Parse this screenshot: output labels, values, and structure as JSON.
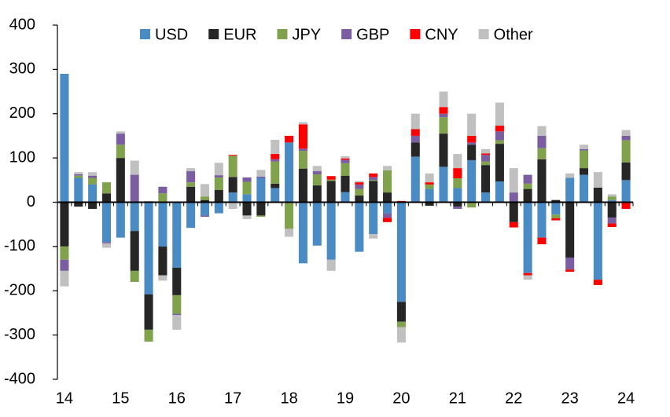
{
  "chart_data": {
    "type": "stacked_bar",
    "categories": [
      "14",
      null,
      null,
      null,
      "15",
      null,
      null,
      null,
      "16",
      null,
      null,
      null,
      "17",
      null,
      null,
      null,
      "18",
      null,
      null,
      null,
      "19",
      null,
      null,
      null,
      "20",
      null,
      null,
      null,
      "21",
      null,
      null,
      null,
      "22",
      null,
      null,
      null,
      "23",
      null,
      null,
      null,
      "24"
    ],
    "series": [
      {
        "name": "USD",
        "color": "#4a8bc4",
        "values": [
          290,
          55,
          40,
          -90,
          -80,
          -65,
          -208,
          -100,
          -148,
          -58,
          -30,
          -25,
          22,
          18,
          55,
          32,
          135,
          -138,
          -98,
          -130,
          23,
          -112,
          -72,
          -25,
          -225,
          103,
          30,
          80,
          32,
          95,
          22,
          47,
          0,
          -160,
          -80,
          -28,
          55,
          62,
          -175,
          5,
          50
        ]
      },
      {
        "name": "EUR",
        "color": "#262626",
        "values": [
          -100,
          -10,
          -15,
          20,
          100,
          -90,
          -80,
          -65,
          -62,
          35,
          5,
          28,
          35,
          -30,
          -30,
          10,
          0,
          76,
          38,
          48,
          37,
          15,
          48,
          22,
          -45,
          32,
          -8,
          75,
          -10,
          35,
          62,
          85,
          -45,
          30,
          97,
          5,
          -125,
          15,
          33,
          -35,
          40
        ]
      },
      {
        "name": "JPY",
        "color": "#80a24d",
        "values": [
          -30,
          5,
          15,
          25,
          30,
          -25,
          -27,
          20,
          -42,
          10,
          8,
          28,
          48,
          28,
          -3,
          50,
          -60,
          40,
          25,
          3,
          28,
          15,
          2,
          50,
          -12,
          0,
          10,
          37,
          22,
          -12,
          8,
          8,
          0,
          12,
          25,
          -8,
          0,
          40,
          0,
          8,
          50
        ]
      },
      {
        "name": "GBP",
        "color": "#7a5ea1",
        "values": [
          -25,
          3,
          5,
          -3,
          25,
          62,
          0,
          15,
          -3,
          25,
          -3,
          5,
          0,
          10,
          3,
          5,
          0,
          5,
          7,
          0,
          8,
          10,
          7,
          -10,
          0,
          15,
          0,
          8,
          -5,
          5,
          15,
          20,
          22,
          20,
          28,
          0,
          -27,
          3,
          0,
          -13,
          10
        ]
      },
      {
        "name": "CNY",
        "color": "#ff0000",
        "values": [
          0,
          0,
          0,
          0,
          0,
          0,
          0,
          0,
          0,
          0,
          0,
          0,
          2,
          0,
          0,
          12,
          15,
          55,
          0,
          8,
          3,
          5,
          8,
          -10,
          3,
          15,
          5,
          15,
          23,
          15,
          3,
          13,
          -12,
          -5,
          -15,
          -5,
          -5,
          0,
          -12,
          -8,
          -15
        ]
      },
      {
        "name": "Other",
        "color": "#c0c0c0",
        "values": [
          -35,
          5,
          8,
          -10,
          5,
          32,
          3,
          -12,
          -33,
          7,
          28,
          28,
          -15,
          -8,
          15,
          32,
          -18,
          5,
          12,
          -25,
          5,
          3,
          -10,
          10,
          -35,
          35,
          20,
          35,
          32,
          50,
          10,
          52,
          55,
          -10,
          22,
          0,
          10,
          10,
          35,
          5,
          13
        ]
      }
    ],
    "ylim": [
      -400,
      400
    ],
    "yticks": [
      -400,
      -300,
      -200,
      -100,
      0,
      100,
      200,
      300,
      400
    ],
    "grid": false,
    "legend": "top"
  }
}
